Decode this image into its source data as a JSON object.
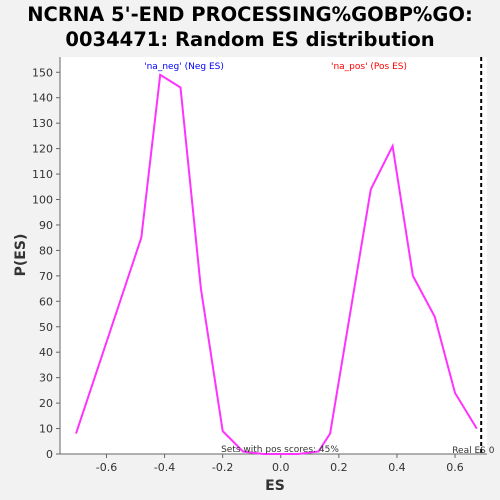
{
  "chart_data": {
    "type": "line",
    "title_lines": [
      "NCRNA 5'-END PROCESSING%GOBP%GO:",
      "0034471: Random ES distribution"
    ],
    "xlabel": "ES",
    "ylabel": "P(ES)",
    "xlim": [
      -0.76,
      0.71
    ],
    "ylim": [
      0,
      156
    ],
    "xticks": [
      -0.6,
      -0.4,
      -0.2,
      0.0,
      0.2,
      0.4,
      0.6
    ],
    "xtick_labels": [
      "-0.6",
      "-0.4",
      "-0.2",
      "0.0",
      "0.2",
      "0.4",
      "0.6"
    ],
    "yticks": [
      0,
      10,
      20,
      30,
      40,
      50,
      60,
      70,
      80,
      90,
      100,
      110,
      120,
      130,
      140,
      150
    ],
    "grid": false,
    "series": [
      {
        "color": "#ff33ff",
        "x": [
          -0.705,
          -0.48,
          -0.415,
          -0.345,
          -0.275,
          -0.2,
          -0.13,
          -0.06,
          0.0,
          0.06,
          0.13,
          0.17,
          0.31,
          0.385,
          0.455,
          0.53,
          0.6,
          0.675
        ],
        "y": [
          8,
          85,
          149,
          144,
          65,
          9,
          1,
          0,
          0,
          0,
          1,
          8,
          104,
          121,
          70,
          54,
          24,
          10
        ]
      }
    ],
    "real_es": 0.69,
    "real_es_label": "Real ES 0",
    "neg_label": "'na_neg' (Neg ES)",
    "pos_label": "'na_pos' (Pos ES)",
    "neg_color": "#0000ff",
    "pos_color": "#ff0000",
    "footer_note": "Sets with pos scores: 45%"
  }
}
